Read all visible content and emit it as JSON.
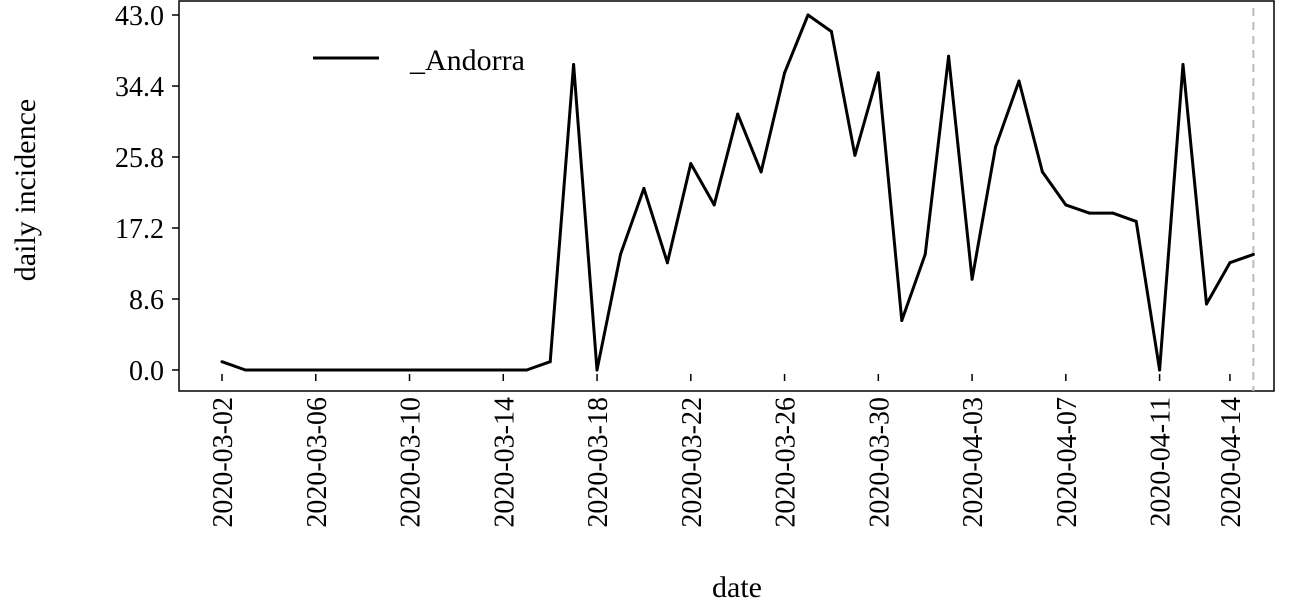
{
  "chart_data": {
    "type": "line",
    "xlabel": "date",
    "ylabel": "daily incidence",
    "x_tick_labels": [
      "2020-03-02",
      "2020-03-06",
      "2020-03-10",
      "2020-03-14",
      "2020-03-18",
      "2020-03-22",
      "2020-03-26",
      "2020-03-30",
      "2020-04-03",
      "2020-04-07",
      "2020-04-11",
      "2020-04-14"
    ],
    "y_tick_labels": [
      "0.0",
      "8.6",
      "17.2",
      "25.8",
      "34.4",
      "43.0"
    ],
    "ylim": [
      0,
      43.0
    ],
    "xlim": [
      "2020-03-02",
      "2020-04-15"
    ],
    "grid": false,
    "legend_position": "top-left",
    "reference_line": {
      "x": "2020-04-15",
      "style": "dashed",
      "color": "#bbbbbb"
    },
    "series": [
      {
        "name": "_Andorra",
        "color": "#000000",
        "x": [
          "2020-03-02",
          "2020-03-03",
          "2020-03-04",
          "2020-03-05",
          "2020-03-06",
          "2020-03-07",
          "2020-03-08",
          "2020-03-09",
          "2020-03-10",
          "2020-03-11",
          "2020-03-12",
          "2020-03-13",
          "2020-03-14",
          "2020-03-15",
          "2020-03-16",
          "2020-03-17",
          "2020-03-18",
          "2020-03-19",
          "2020-03-20",
          "2020-03-21",
          "2020-03-22",
          "2020-03-23",
          "2020-03-24",
          "2020-03-25",
          "2020-03-26",
          "2020-03-27",
          "2020-03-28",
          "2020-03-29",
          "2020-03-30",
          "2020-03-31",
          "2020-04-01",
          "2020-04-02",
          "2020-04-03",
          "2020-04-04",
          "2020-04-05",
          "2020-04-06",
          "2020-04-07",
          "2020-04-08",
          "2020-04-09",
          "2020-04-10",
          "2020-04-11",
          "2020-04-12",
          "2020-04-13",
          "2020-04-14",
          "2020-04-15"
        ],
        "values": [
          1,
          0,
          0,
          0,
          0,
          0,
          0,
          0,
          0,
          0,
          0,
          0,
          0,
          0,
          1,
          37,
          0,
          14,
          22,
          13,
          25,
          20,
          31,
          24,
          36,
          43,
          41,
          26,
          36,
          6,
          14,
          38,
          11,
          27,
          35,
          24,
          20,
          19,
          19,
          18,
          0,
          37,
          8,
          13,
          14
        ]
      }
    ]
  }
}
